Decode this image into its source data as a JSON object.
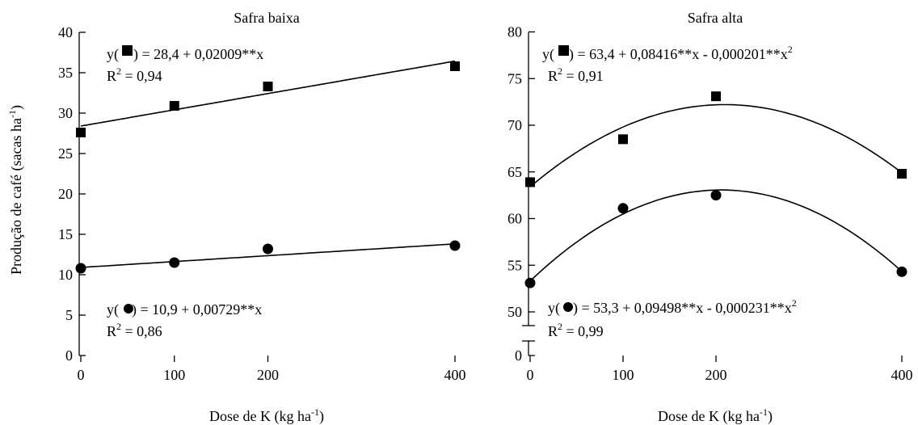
{
  "ylabel_main": "Produção de café",
  "ylabel_unit": "sacas ha",
  "ylabel_unit_sup": "-1",
  "xlabel_main": "Dose de K (kg ha",
  "xlabel_sup": "-1",
  "chart_data": [
    {
      "type": "scatter",
      "title": "Safra baixa",
      "x": [
        0,
        100,
        200,
        400
      ],
      "xticks": [
        "0",
        "100",
        "200",
        "400"
      ],
      "xlim": [
        0,
        400
      ],
      "ylim": [
        0,
        40
      ],
      "yticks": [
        "0",
        "5",
        "10",
        "15",
        "20",
        "25",
        "30",
        "35",
        "40"
      ],
      "series": [
        {
          "marker": "square",
          "values": [
            27.6,
            30.9,
            33.3,
            35.8
          ],
          "fit": {
            "kind": "linear",
            "a": 28.4,
            "b": 0.02009,
            "c": 0
          },
          "equation": " = 28,4 + 0,02009**x",
          "r2": " = 0,94"
        },
        {
          "marker": "circle",
          "values": [
            10.8,
            11.5,
            13.2,
            13.6
          ],
          "fit": {
            "kind": "linear",
            "a": 10.9,
            "b": 0.00729,
            "c": 0
          },
          "equation": " = 10,9 + 0,00729**x",
          "r2": " = 0,86"
        }
      ]
    },
    {
      "type": "scatter",
      "title": "Safra alta",
      "x": [
        0,
        100,
        200,
        400
      ],
      "xticks": [
        "0",
        "100",
        "200",
        "400"
      ],
      "xlim": [
        0,
        400
      ],
      "ylim": [
        50,
        80
      ],
      "axis_break": true,
      "yticks": [
        "0",
        "50",
        "55",
        "60",
        "65",
        "70",
        "75",
        "80"
      ],
      "series": [
        {
          "marker": "square",
          "values": [
            63.9,
            68.5,
            73.1,
            64.8
          ],
          "fit": {
            "kind": "quadratic",
            "a": 63.4,
            "b": 0.08416,
            "c": -0.000201
          },
          "equation": " = 63,4 + 0,08416**x - 0,000201**x",
          "r2": " = 0,91"
        },
        {
          "marker": "circle",
          "values": [
            53.1,
            61.1,
            62.5,
            54.3
          ],
          "fit": {
            "kind": "quadratic",
            "a": 53.3,
            "b": 0.09498,
            "c": -0.000231
          },
          "equation": " = 53,3 + 0,09498**x - 0,000231**x",
          "r2": " = 0,99"
        }
      ]
    }
  ]
}
